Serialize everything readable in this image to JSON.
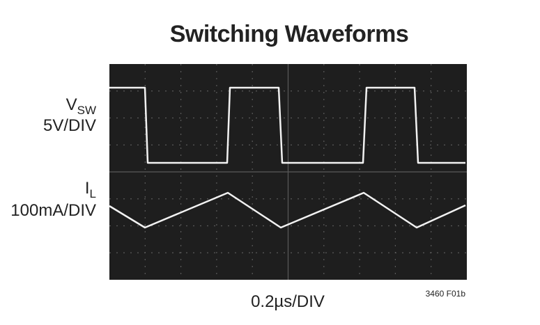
{
  "title": "Switching Waveforms",
  "traces": [
    {
      "symbol": "V",
      "subscript": "SW",
      "scale": "5V/DIV"
    },
    {
      "symbol": "I",
      "subscript": "L",
      "scale": "100mA/DIV"
    }
  ],
  "time_scale": "0.2µs/DIV",
  "figure_id": "3460 F01b"
}
